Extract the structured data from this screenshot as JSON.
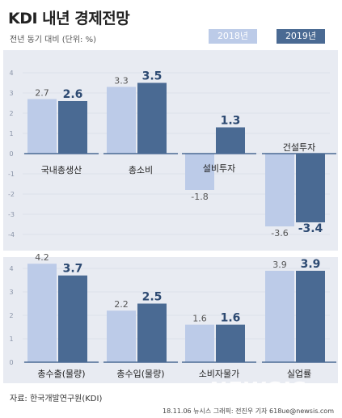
{
  "title": "KDI 내년 경제전망",
  "subtitle": "전년 동기 대비 (단위: %)",
  "legend": {
    "s2018": "2018년",
    "s2019": "2019년"
  },
  "colors": {
    "s2018": "#bccbe8",
    "s2019": "#4a6a93",
    "background": "#e8ebf2",
    "axis": "#4a6a93",
    "grid": "#d0d5e0"
  },
  "source": "자료: 한국개발연구원(KDI)",
  "credit": "18.11.06 뉴시스 그래픽: 전진우 기자 618ue@newsis.com",
  "watermark": "NEWSIS",
  "chart_data": [
    {
      "type": "bar",
      "panel": "top",
      "title": "",
      "ylim": [
        -4,
        4
      ],
      "yticks": [
        "-4",
        "-3",
        "-2",
        "-1",
        "0",
        "1",
        "2",
        "3",
        "4"
      ],
      "categories": [
        "국내총생산",
        "총소비",
        "설비투자",
        "건설투자"
      ],
      "series": [
        {
          "name": "2018년",
          "values": [
            2.7,
            3.3,
            -1.8,
            -3.6
          ],
          "labels": [
            "2.7",
            "3.3",
            "-1.8",
            "-3.6"
          ]
        },
        {
          "name": "2019년",
          "values": [
            2.6,
            3.5,
            1.3,
            -3.4
          ],
          "labels": [
            "2.6",
            "3.5",
            "1.3",
            "-3.4"
          ]
        }
      ]
    },
    {
      "type": "bar",
      "panel": "bottom",
      "title": "",
      "ylim": [
        0,
        4
      ],
      "yticks": [
        "0",
        "1",
        "2",
        "3",
        "4"
      ],
      "categories": [
        "총수출(물량)",
        "총수입(물량)",
        "소비자물가",
        "실업률"
      ],
      "series": [
        {
          "name": "2018년",
          "values": [
            4.2,
            2.2,
            1.6,
            3.9
          ],
          "labels": [
            "4.2",
            "2.2",
            "1.6",
            "3.9"
          ]
        },
        {
          "name": "2019년",
          "values": [
            3.7,
            2.5,
            1.6,
            3.9
          ],
          "labels": [
            "3.7",
            "2.5",
            "1.6",
            "3.9"
          ]
        }
      ]
    }
  ]
}
